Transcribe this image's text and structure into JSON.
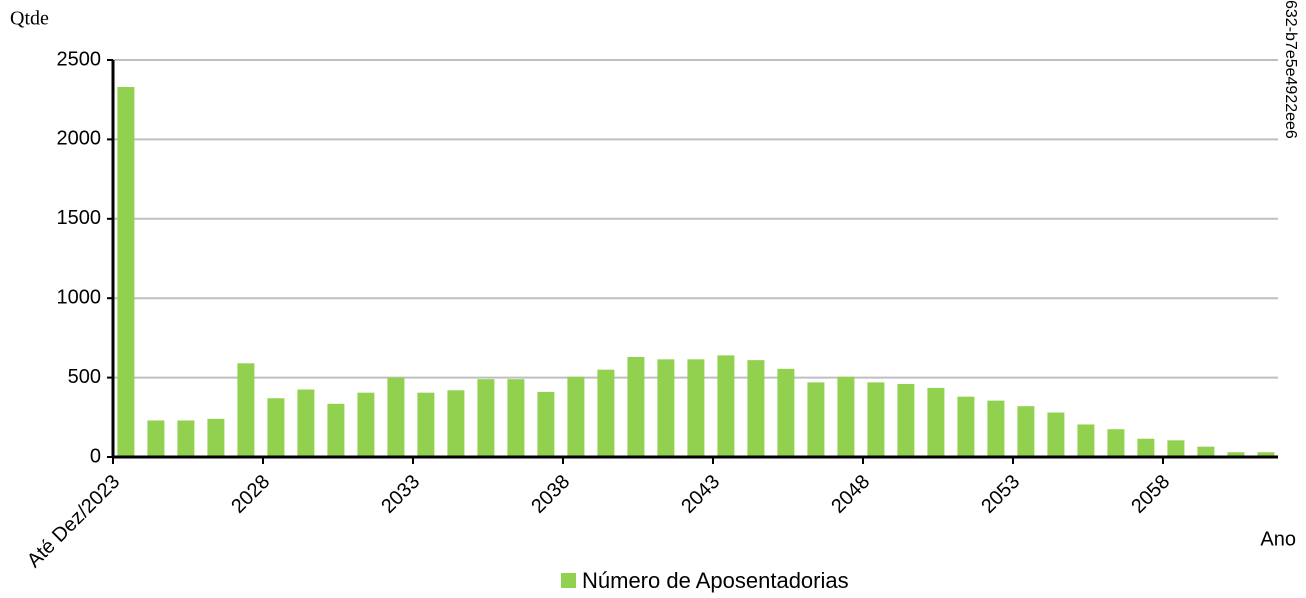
{
  "chart_data": {
    "type": "bar",
    "y_label": "Qtde",
    "x_label": "Ano",
    "annotation": "632-b7e5e4922ee6",
    "categories": [
      "Até Dez/2023",
      null,
      null,
      null,
      null,
      "2028",
      null,
      null,
      null,
      null,
      "2033",
      null,
      null,
      null,
      null,
      "2038",
      null,
      null,
      null,
      null,
      "2043",
      null,
      null,
      null,
      null,
      "2048",
      null,
      null,
      null,
      null,
      "2053",
      null,
      null,
      null,
      null,
      "2058",
      null,
      null,
      null
    ],
    "series": [
      {
        "name": "Número de Aposentadorias",
        "color": "#92d050",
        "values": [
          2330,
          230,
          230,
          240,
          590,
          370,
          425,
          335,
          405,
          500,
          405,
          420,
          490,
          490,
          410,
          505,
          550,
          630,
          615,
          615,
          640,
          610,
          555,
          470,
          505,
          470,
          460,
          435,
          380,
          355,
          320,
          280,
          205,
          175,
          115,
          105,
          65,
          30,
          30
        ]
      }
    ],
    "ylim": [
      0,
      2500
    ],
    "yticks": [
      0,
      500,
      1000,
      1500,
      2000,
      2500
    ],
    "grid": true,
    "legend": "bottom"
  }
}
